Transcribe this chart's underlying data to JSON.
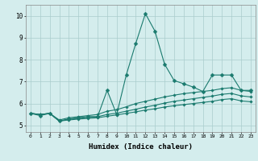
{
  "title": "",
  "xlabel": "Humidex (Indice chaleur)",
  "xlim": [
    -0.5,
    23.5
  ],
  "ylim": [
    4.7,
    10.5
  ],
  "yticks": [
    5,
    6,
    7,
    8,
    9,
    10
  ],
  "xticks": [
    0,
    1,
    2,
    3,
    4,
    5,
    6,
    7,
    8,
    9,
    10,
    11,
    12,
    13,
    14,
    15,
    16,
    17,
    18,
    19,
    20,
    21,
    22,
    23
  ],
  "bg_color": "#d4eded",
  "grid_color": "#aacccc",
  "line_color": "#1a7a6e",
  "lines": [
    {
      "x": [
        0,
        1,
        2,
        3,
        4,
        5,
        6,
        7,
        8,
        9,
        10,
        11,
        12,
        13,
        14,
        15,
        16,
        17,
        18,
        19,
        20,
        21,
        22,
        23
      ],
      "y": [
        5.55,
        5.45,
        5.55,
        5.2,
        5.3,
        5.35,
        5.4,
        5.4,
        6.6,
        5.5,
        7.3,
        8.75,
        10.1,
        9.3,
        7.8,
        7.05,
        6.9,
        6.75,
        6.55,
        7.3,
        7.3,
        7.3,
        6.6,
        6.6
      ],
      "marker": "D",
      "markersize": 2.5
    },
    {
      "x": [
        0,
        1,
        2,
        3,
        4,
        5,
        6,
        7,
        8,
        9,
        10,
        11,
        12,
        13,
        14,
        15,
        16,
        17,
        18,
        19,
        20,
        21,
        22,
        23
      ],
      "y": [
        5.55,
        5.5,
        5.55,
        5.25,
        5.35,
        5.4,
        5.45,
        5.5,
        5.65,
        5.72,
        5.85,
        6.0,
        6.1,
        6.2,
        6.3,
        6.38,
        6.45,
        6.5,
        6.55,
        6.6,
        6.68,
        6.72,
        6.6,
        6.55
      ],
      "marker": "D",
      "markersize": 1.8
    },
    {
      "x": [
        0,
        1,
        2,
        3,
        4,
        5,
        6,
        7,
        8,
        9,
        10,
        11,
        12,
        13,
        14,
        15,
        16,
        17,
        18,
        19,
        20,
        21,
        22,
        23
      ],
      "y": [
        5.55,
        5.5,
        5.55,
        5.2,
        5.28,
        5.33,
        5.37,
        5.4,
        5.5,
        5.56,
        5.65,
        5.74,
        5.84,
        5.92,
        6.02,
        6.1,
        6.16,
        6.22,
        6.28,
        6.34,
        6.42,
        6.46,
        6.35,
        6.3
      ],
      "marker": "D",
      "markersize": 1.8
    },
    {
      "x": [
        0,
        1,
        2,
        3,
        4,
        5,
        6,
        7,
        8,
        9,
        10,
        11,
        12,
        13,
        14,
        15,
        16,
        17,
        18,
        19,
        20,
        21,
        22,
        23
      ],
      "y": [
        5.55,
        5.5,
        5.55,
        5.2,
        5.25,
        5.29,
        5.32,
        5.35,
        5.42,
        5.48,
        5.55,
        5.62,
        5.7,
        5.76,
        5.84,
        5.9,
        5.95,
        6.0,
        6.05,
        6.1,
        6.18,
        6.22,
        6.12,
        6.08
      ],
      "marker": "D",
      "markersize": 1.8
    }
  ]
}
